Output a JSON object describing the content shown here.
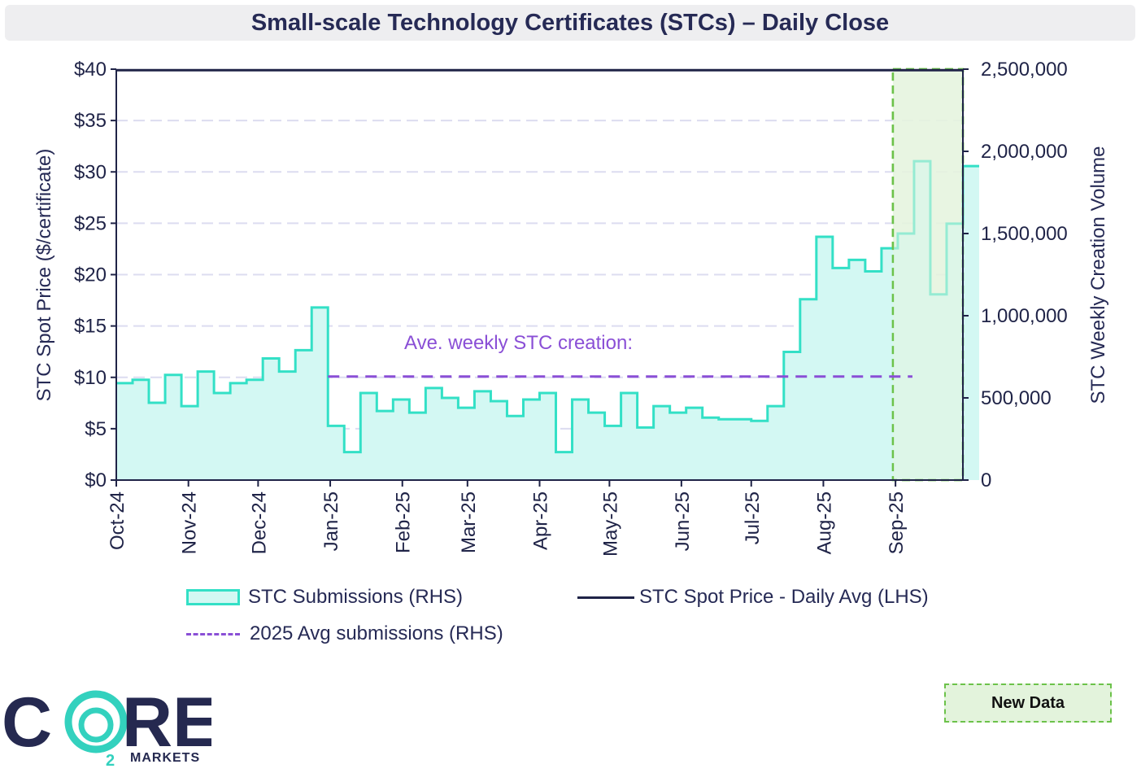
{
  "chart_data": {
    "type": "line",
    "title": "Small-scale Technology Certificates (STCs) – Daily Close",
    "ylabel_left": "STC Spot Price ($/certificate)",
    "ylabel_right": "STC Weekly Creation Volume",
    "ylim_left": [
      0,
      40
    ],
    "ylim_right": [
      0,
      2500000
    ],
    "left_ticks": [
      "$0",
      "$5",
      "$10",
      "$15",
      "$20",
      "$25",
      "$30",
      "$35",
      "$40"
    ],
    "right_ticks": [
      "0",
      "500,000",
      "1,000,000",
      "1,500,000",
      "2,000,000",
      "2,500,000"
    ],
    "x_ticks": [
      "Oct-24",
      "Nov-24",
      "Dec-24",
      "Jan-25",
      "Feb-25",
      "Mar-25",
      "Apr-25",
      "May-25",
      "Jun-25",
      "Jul-25",
      "Aug-25",
      "Sep-25"
    ],
    "x_range_weeks": [
      0,
      52
    ],
    "annotation": "Ave. weekly STC creation:",
    "series": [
      {
        "name": "STC Submissions (RHS)",
        "kind": "step-area",
        "axis": "right",
        "color": "#33e0c6",
        "fill": "#d3f8f3",
        "values": [
          590000,
          610000,
          470000,
          640000,
          450000,
          660000,
          530000,
          590000,
          610000,
          740000,
          660000,
          790000,
          1050000,
          330000,
          170000,
          530000,
          420000,
          490000,
          410000,
          560000,
          500000,
          440000,
          540000,
          480000,
          390000,
          490000,
          530000,
          170000,
          490000,
          410000,
          330000,
          530000,
          320000,
          450000,
          410000,
          440000,
          380000,
          370000,
          370000,
          360000,
          450000,
          780000,
          1100000,
          1480000,
          1290000,
          1340000,
          1270000,
          1410000,
          1500000,
          1940000,
          1130000,
          1560000,
          1910000
        ]
      },
      {
        "name": "STC Spot Price - Daily Avg (LHS)",
        "kind": "line",
        "axis": "left",
        "color": "#1f2347",
        "value": 39.9
      },
      {
        "name": "2025 Avg submissions (RHS)",
        "kind": "dashed-line",
        "axis": "right",
        "color": "#8a4fd6",
        "value": 630000,
        "from_week": 13,
        "to_week": 48.9
      }
    ],
    "new_data_region_weeks": [
      47.7,
      52
    ],
    "new_data_label": "New Data"
  },
  "logo": {
    "name": "CO2RE",
    "subtitle": "MARKETS"
  }
}
